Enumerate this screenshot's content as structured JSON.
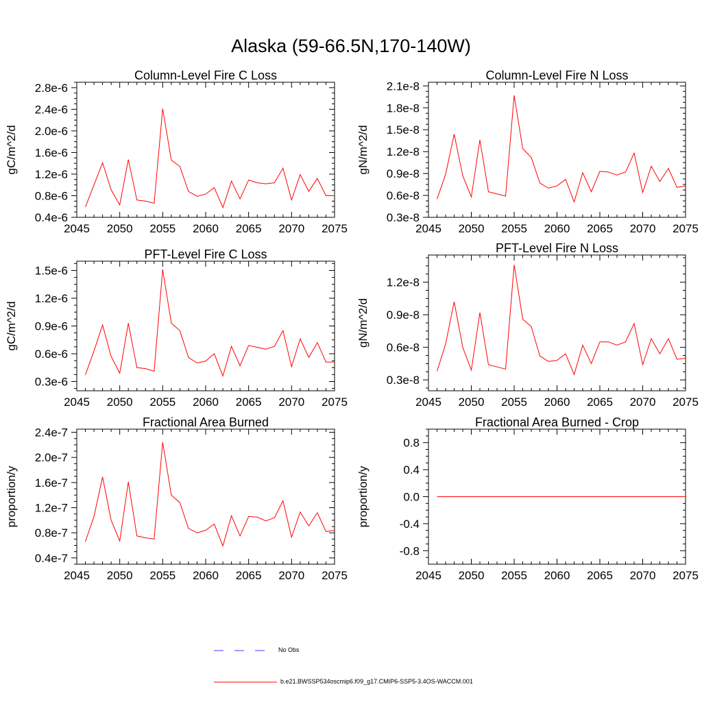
{
  "figure": {
    "title": "Alaska (59-66.5N,170-140W)",
    "series_color": "#ff0000",
    "obs_color": "#3c3cff"
  },
  "legend": {
    "obs_label": "No Obs",
    "model_label": "b.e21.BWSSP534oscmip6.f09_g17.CMIP6-SSP5-3.4OS-WACCM.001"
  },
  "chart_data": [
    {
      "type": "line",
      "title": "Column-Level Fire C Loss",
      "ylabel": "gC/m^2/d",
      "xlim": [
        2045,
        2075
      ],
      "ylim": [
        4e-07,
        2.9e-06
      ],
      "xticks": [
        2045,
        2050,
        2055,
        2060,
        2065,
        2070,
        2075
      ],
      "yticks": [
        4e-07,
        8e-07,
        1.2e-06,
        1.6e-06,
        2e-06,
        2.4e-06,
        2.8e-06
      ],
      "ytick_labels": [
        "0.4e-6",
        "0.8e-6",
        "1.2e-6",
        "1.6e-6",
        "2.0e-6",
        "2.4e-6",
        "2.8e-6"
      ],
      "x": [
        2046,
        2047,
        2048,
        2049,
        2050,
        2051,
        2052,
        2053,
        2054,
        2055,
        2056,
        2057,
        2058,
        2059,
        2060,
        2061,
        2062,
        2063,
        2064,
        2065,
        2066,
        2067,
        2068,
        2069,
        2070,
        2071,
        2072,
        2073,
        2074,
        2075
      ],
      "values": [
        5.9e-07,
        1e-06,
        1.41e-06,
        9.1e-07,
        6.3e-07,
        1.47e-06,
        7.2e-07,
        7e-07,
        6.6e-07,
        2.41e-06,
        1.46e-06,
        1.34e-06,
        8.8e-07,
        7.9e-07,
        8.3e-07,
        9.5e-07,
        5.8e-07,
        1.07e-06,
        7.4e-07,
        1.09e-06,
        1.04e-06,
        1.02e-06,
        1.04e-06,
        1.31e-06,
        7.2e-07,
        1.19e-06,
        8.8e-07,
        1.12e-06,
        8e-07,
        8e-07
      ]
    },
    {
      "type": "line",
      "title": "Column-Level Fire N Loss",
      "ylabel": "gN/m^2/d",
      "xlim": [
        2045,
        2075
      ],
      "ylim": [
        3e-09,
        2.15e-08
      ],
      "xticks": [
        2045,
        2050,
        2055,
        2060,
        2065,
        2070,
        2075
      ],
      "yticks": [
        3e-09,
        6e-09,
        9e-09,
        1.2e-08,
        1.5e-08,
        1.8e-08,
        2.1e-08
      ],
      "ytick_labels": [
        "0.3e-8",
        "0.6e-8",
        "0.9e-8",
        "1.2e-8",
        "1.5e-8",
        "1.8e-8",
        "2.1e-8"
      ],
      "x": [
        2046,
        2047,
        2048,
        2049,
        2050,
        2051,
        2052,
        2053,
        2054,
        2055,
        2056,
        2057,
        2058,
        2059,
        2060,
        2061,
        2062,
        2063,
        2064,
        2065,
        2066,
        2067,
        2068,
        2069,
        2070,
        2071,
        2072,
        2073,
        2074,
        2075
      ],
      "values": [
        5.5e-09,
        8.9e-09,
        1.44e-08,
        8.7e-09,
        5.8e-09,
        1.36e-08,
        6.5e-09,
        6.2e-09,
        5.9e-09,
        1.97e-08,
        1.24e-08,
        1.12e-08,
        7.7e-09,
        7e-09,
        7.3e-09,
        8.2e-09,
        5.1e-09,
        9.1e-09,
        6.5e-09,
        9.3e-09,
        9.2e-09,
        8.8e-09,
        9.2e-09,
        1.18e-08,
        6.4e-09,
        1e-08,
        7.9e-09,
        9.7e-09,
        7.1e-09,
        7.3e-09
      ]
    },
    {
      "type": "line",
      "title": "PFT-Level Fire C Loss",
      "ylabel": "gC/m^2/d",
      "xlim": [
        2045,
        2075
      ],
      "ylim": [
        2e-07,
        1.6e-06
      ],
      "xticks": [
        2045,
        2050,
        2055,
        2060,
        2065,
        2070,
        2075
      ],
      "yticks": [
        3e-07,
        6e-07,
        9e-07,
        1.2e-06,
        1.5e-06
      ],
      "ytick_labels": [
        "0.3e-6",
        "0.6e-6",
        "0.9e-6",
        "1.2e-6",
        "1.5e-6"
      ],
      "x": [
        2046,
        2047,
        2048,
        2049,
        2050,
        2051,
        2052,
        2053,
        2054,
        2055,
        2056,
        2057,
        2058,
        2059,
        2060,
        2061,
        2062,
        2063,
        2064,
        2065,
        2066,
        2067,
        2068,
        2069,
        2070,
        2071,
        2072,
        2073,
        2074,
        2075
      ],
      "values": [
        3.7e-07,
        6.3e-07,
        9.1e-07,
        5.7e-07,
        3.9e-07,
        9.3e-07,
        4.5e-07,
        4.4e-07,
        4.1e-07,
        1.51e-06,
        9.3e-07,
        8.5e-07,
        5.6e-07,
        5e-07,
        5.2e-07,
        6e-07,
        3.6e-07,
        6.8e-07,
        4.7e-07,
        6.9e-07,
        6.7e-07,
        6.5e-07,
        6.8e-07,
        8.5e-07,
        4.6e-07,
        7.6e-07,
        5.6e-07,
        7.2e-07,
        5.1e-07,
        5.1e-07
      ]
    },
    {
      "type": "line",
      "title": "PFT-Level Fire N Loss",
      "ylabel": "gN/m^2/d",
      "xlim": [
        2045,
        2075
      ],
      "ylim": [
        2e-09,
        1.45e-08
      ],
      "xticks": [
        2045,
        2050,
        2055,
        2060,
        2065,
        2070,
        2075
      ],
      "yticks": [
        3e-09,
        6e-09,
        9e-09,
        1.2e-08
      ],
      "ytick_labels": [
        "0.3e-8",
        "0.6e-8",
        "0.9e-8",
        "1.2e-8"
      ],
      "x": [
        2046,
        2047,
        2048,
        2049,
        2050,
        2051,
        2052,
        2053,
        2054,
        2055,
        2056,
        2057,
        2058,
        2059,
        2060,
        2061,
        2062,
        2063,
        2064,
        2065,
        2066,
        2067,
        2068,
        2069,
        2070,
        2071,
        2072,
        2073,
        2074,
        2075
      ],
      "values": [
        3.8e-09,
        6.3e-09,
        1.02e-08,
        6e-09,
        3.9e-09,
        9.2e-09,
        4.4e-09,
        4.2e-09,
        4e-09,
        1.36e-08,
        8.6e-09,
        7.9e-09,
        5.2e-09,
        4.7e-09,
        4.8e-09,
        5.4e-09,
        3.5e-09,
        6.2e-09,
        4.5e-09,
        6.5e-09,
        6.5e-09,
        6.2e-09,
        6.5e-09,
        8.2e-09,
        4.4e-09,
        6.8e-09,
        5.4e-09,
        6.8e-09,
        4.9e-09,
        5e-09
      ]
    },
    {
      "type": "line",
      "title": "Fractional Area Burned",
      "ylabel": "proportion/y",
      "xlim": [
        2045,
        2075
      ],
      "ylim": [
        3e-08,
        2.45e-07
      ],
      "xticks": [
        2045,
        2050,
        2055,
        2060,
        2065,
        2070,
        2075
      ],
      "yticks": [
        4e-08,
        8e-08,
        1.2e-07,
        1.6e-07,
        2e-07,
        2.4e-07
      ],
      "ytick_labels": [
        "0.4e-7",
        "0.8e-7",
        "1.2e-7",
        "1.6e-7",
        "2.0e-7",
        "2.4e-7"
      ],
      "x": [
        2046,
        2047,
        2048,
        2049,
        2050,
        2051,
        2052,
        2053,
        2054,
        2055,
        2056,
        2057,
        2058,
        2059,
        2060,
        2061,
        2062,
        2063,
        2064,
        2065,
        2066,
        2067,
        2068,
        2069,
        2070,
        2071,
        2072,
        2073,
        2074,
        2075
      ],
      "values": [
        6.6e-08,
        1.06e-07,
        1.69e-07,
        1e-07,
        6.7e-08,
        1.61e-07,
        7.5e-08,
        7.2e-08,
        7e-08,
        2.24e-07,
        1.4e-07,
        1.28e-07,
        8.7e-08,
        8e-08,
        8.4e-08,
        9.4e-08,
        5.9e-08,
        1.07e-07,
        7.5e-08,
        1.06e-07,
        1.05e-07,
        9.9e-08,
        1.04e-07,
        1.31e-07,
        7.3e-08,
        1.13e-07,
        9.1e-08,
        1.12e-07,
        8.2e-08,
        8.4e-08
      ]
    },
    {
      "type": "line",
      "title": "Fractional Area Burned - Crop",
      "ylabel": "proportion/y",
      "xlim": [
        2045,
        2075
      ],
      "ylim": [
        -1.0,
        1.0
      ],
      "xticks": [
        2045,
        2050,
        2055,
        2060,
        2065,
        2070,
        2075
      ],
      "yticks": [
        -0.8,
        -0.4,
        0.0,
        0.4,
        0.8
      ],
      "ytick_labels": [
        "-0.8",
        "-0.4",
        "0.0",
        "0.4",
        "0.8"
      ],
      "x": [
        2046,
        2047,
        2048,
        2049,
        2050,
        2051,
        2052,
        2053,
        2054,
        2055,
        2056,
        2057,
        2058,
        2059,
        2060,
        2061,
        2062,
        2063,
        2064,
        2065,
        2066,
        2067,
        2068,
        2069,
        2070,
        2071,
        2072,
        2073,
        2074,
        2075
      ],
      "values": [
        0,
        0,
        0,
        0,
        0,
        0,
        0,
        0,
        0,
        0,
        0,
        0,
        0,
        0,
        0,
        0,
        0,
        0,
        0,
        0,
        0,
        0,
        0,
        0,
        0,
        0,
        0,
        0,
        0,
        0
      ]
    }
  ]
}
